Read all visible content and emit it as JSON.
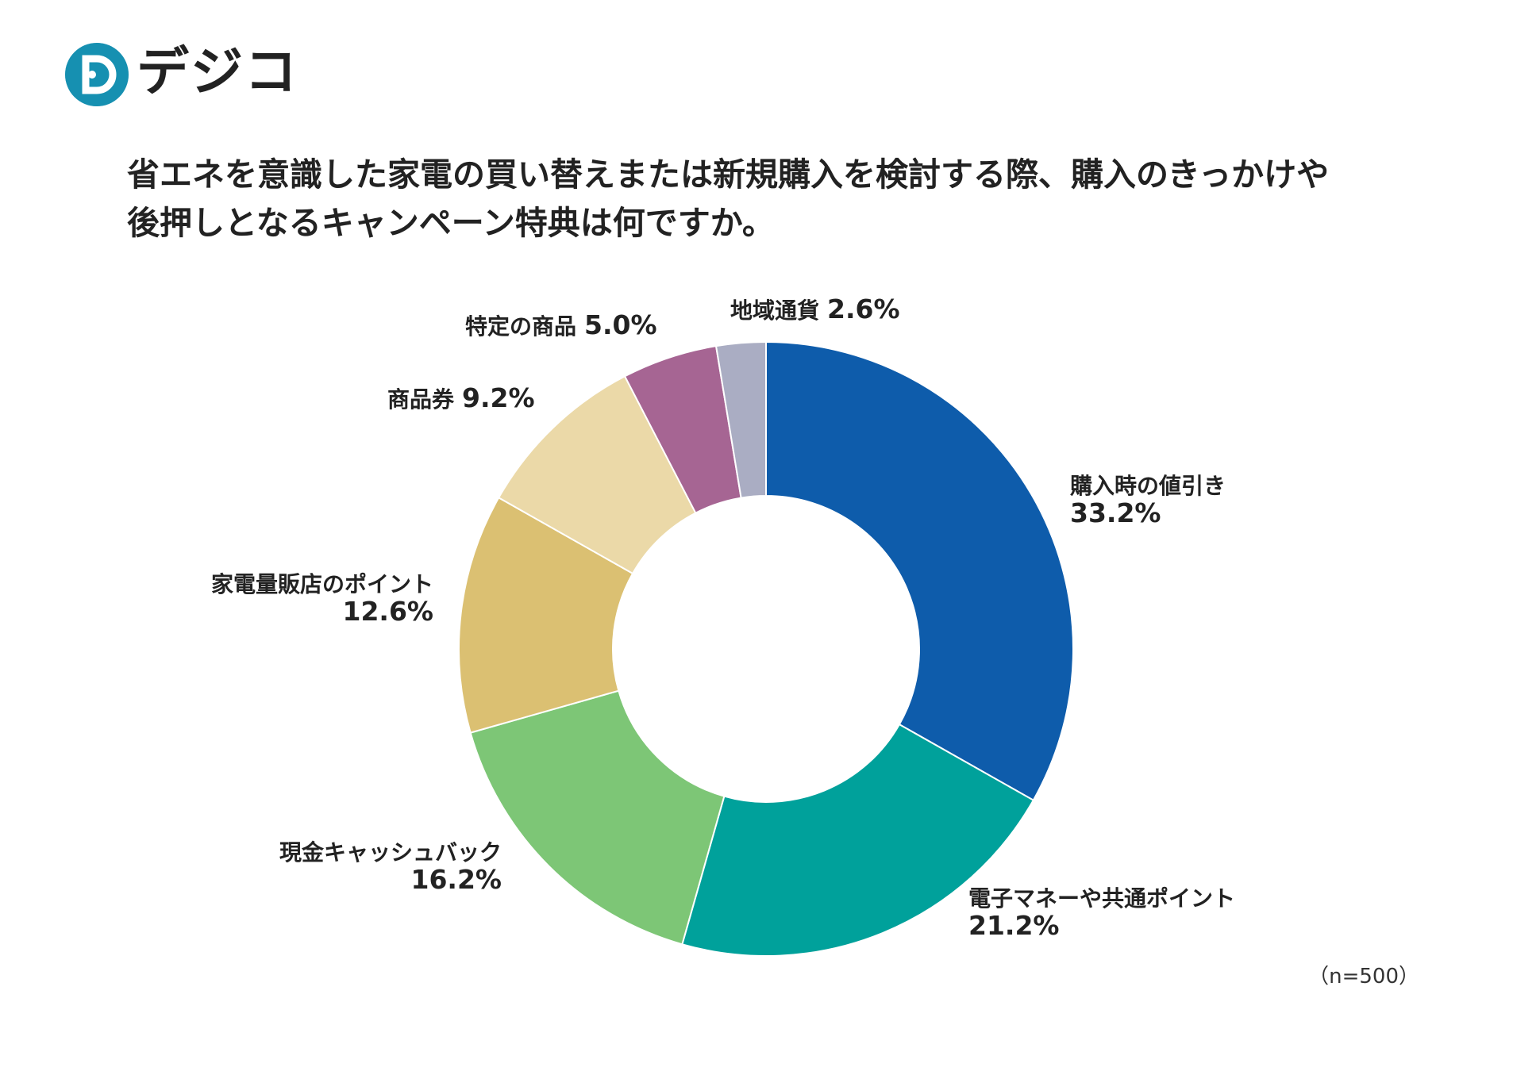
{
  "brand": {
    "name": "デジコ",
    "logo_letter": "D"
  },
  "question": {
    "line1": "省エネを意識した家電の買い替えまたは新規購入を検討する際、購入のきっかけや",
    "line2": "後押しとなるキャンペーン特典は何ですか。"
  },
  "sample_note": "（n=500）",
  "chart_data": {
    "type": "pie",
    "donut": true,
    "title": "",
    "slices": [
      {
        "label": "購入時の値引き",
        "value": 33.2,
        "value_text": "33.2%",
        "color": "#0E5CAB"
      },
      {
        "label": "電子マネーや共通ポイント",
        "value": 21.2,
        "value_text": "21.2%",
        "color": "#00A19B"
      },
      {
        "label": "現金キャッシュバック",
        "value": 16.2,
        "value_text": "16.2%",
        "color": "#7DC676"
      },
      {
        "label": "家電量販店のポイント",
        "value": 12.6,
        "value_text": "12.6%",
        "color": "#DBC072"
      },
      {
        "label": "商品券",
        "value": 9.2,
        "value_text": "9.2%",
        "color": "#EBD9A8"
      },
      {
        "label": "特定の商品",
        "value": 5.0,
        "value_text": "5.0%",
        "color": "#A66593"
      },
      {
        "label": "地域通貨",
        "value": 2.6,
        "value_text": "2.6%",
        "color": "#AAADC3"
      }
    ]
  }
}
